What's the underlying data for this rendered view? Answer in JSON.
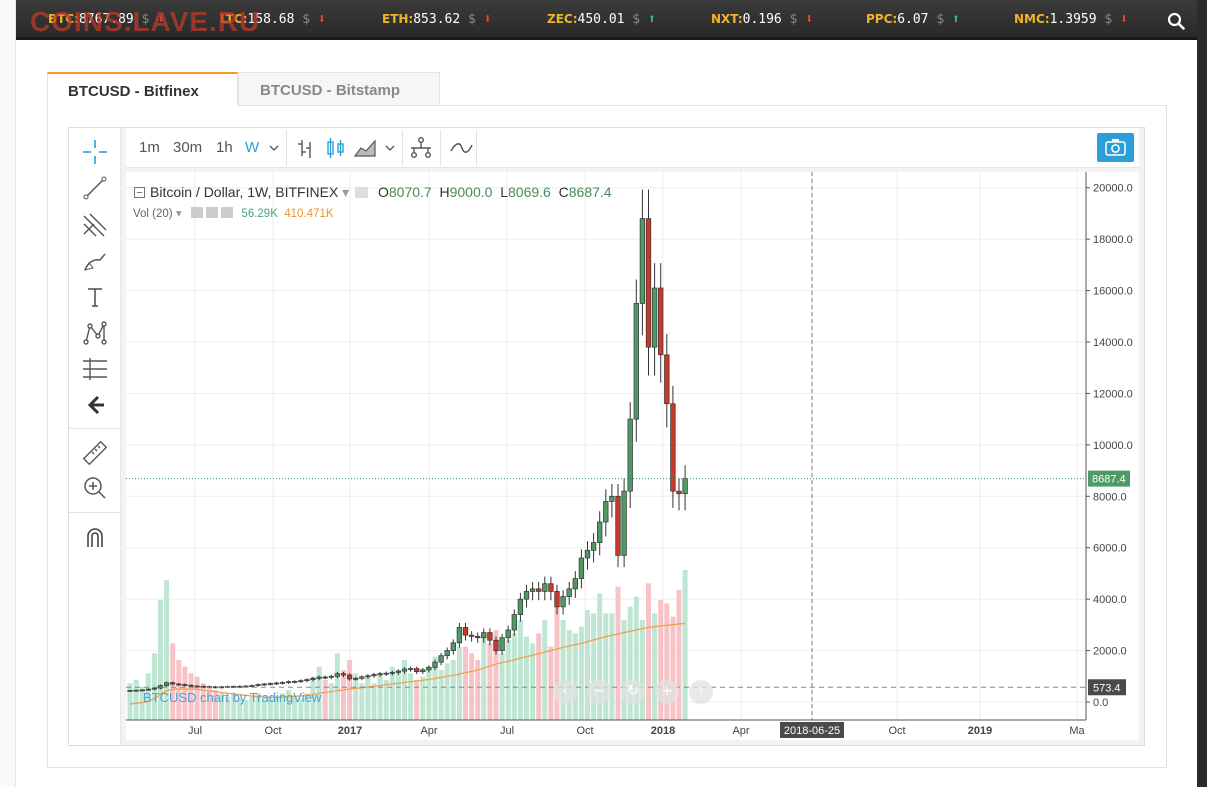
{
  "site": {
    "watermark": "COINS.LAVE.RU"
  },
  "ticker": [
    {
      "symbol": "BTC:",
      "price": "8767.89",
      "currency": "$",
      "dir": "down"
    },
    {
      "symbol": "LTC:",
      "price": "158.68",
      "currency": "$",
      "dir": "down"
    },
    {
      "symbol": "ETH:",
      "price": "853.62",
      "currency": "$",
      "dir": "down"
    },
    {
      "symbol": "ZEC:",
      "price": "450.01",
      "currency": "$",
      "dir": "up"
    },
    {
      "symbol": "NXT:",
      "price": "0.196",
      "currency": "$",
      "dir": "down"
    },
    {
      "symbol": "PPC:",
      "price": "6.07",
      "currency": "$",
      "dir": "up"
    },
    {
      "symbol": "NMC:",
      "price": "1.3959",
      "currency": "$",
      "dir": "down"
    }
  ],
  "tabs": [
    {
      "label": "BTCUSD - Bitfinex",
      "active": true
    },
    {
      "label": "BTCUSD - Bitstamp",
      "active": false
    }
  ],
  "toolbar": {
    "intervals": [
      "1m",
      "30m",
      "1h",
      "W"
    ],
    "active_interval": "W"
  },
  "legend": {
    "symbol": "Bitcoin / Dollar, 1W, BITFINEX",
    "open_label": "O",
    "open": "8070.7",
    "high_label": "H",
    "high": "9000.0",
    "low_label": "L",
    "low": "8069.6",
    "close_label": "C",
    "close": "8687.4",
    "vol_label": "Vol (20)",
    "vol_value": "56.29K",
    "vol_ma": "410.471K"
  },
  "credit": "BTCUSD chart by TradingView",
  "colors": {
    "up": "#3d8b5a",
    "down": "#c8392b",
    "up_fill": "#4e9a66",
    "vol_up": "#bfe6d3",
    "vol_down": "#f7c3c7",
    "ma": "#f0a050",
    "accent": "#2b9fd8"
  },
  "chart_data": {
    "type": "candlestick",
    "title": "Bitcoin / Dollar, 1W, BITFINEX",
    "ylim": [
      0,
      21000
    ],
    "y_ticks": [
      "0.0",
      "2000.0",
      "4000.0",
      "6000.0",
      "8000.0",
      "10000.0",
      "12000.0",
      "14000.0",
      "16000.0",
      "18000.0",
      "20000.0"
    ],
    "x_ticks": [
      "Jul",
      "Oct",
      "2017",
      "Apr",
      "Jul",
      "Oct",
      "2018",
      "Apr",
      "2018-06-25",
      "Oct",
      "2019",
      "Ma"
    ],
    "last_price_label": "8687.4",
    "last_price": 8687.4,
    "ref_line_label": "573.4",
    "ref_line": 573.4,
    "cursor_date": "2018-06-25",
    "close": [
      450,
      460,
      470,
      500,
      540,
      640,
      750,
      700,
      680,
      650,
      620,
      610,
      600,
      590,
      575,
      590,
      600,
      605,
      610,
      620,
      640,
      680,
      700,
      720,
      740,
      760,
      790,
      800,
      830,
      870,
      920,
      970,
      960,
      1000,
      1100,
      1050,
      900,
      920,
      980,
      1020,
      1070,
      1100,
      1120,
      1150,
      1200,
      1280,
      1300,
      1180,
      1250,
      1350,
      1550,
      1800,
      2000,
      2300,
      2900,
      2600,
      2550,
      2500,
      2700,
      2400,
      2000,
      2500,
      2800,
      3400,
      4000,
      4300,
      4400,
      4300,
      4600,
      4300,
      3700,
      4100,
      4400,
      4800,
      5600,
      5900,
      6200,
      7000,
      7800,
      8000,
      5700,
      8200,
      11000,
      15500,
      18800,
      13800,
      16100,
      13500,
      11600,
      8200,
      8100,
      8687.4
    ],
    "volume": [
      1100,
      1200,
      1000,
      1400,
      2000,
      3600,
      4200,
      2300,
      1800,
      1600,
      1400,
      1300,
      1100,
      1000,
      900,
      800,
      700,
      800,
      650,
      600,
      700,
      800,
      600,
      650,
      700,
      800,
      900,
      700,
      650,
      800,
      1300,
      1600,
      1200,
      1100,
      2000,
      1500,
      1800,
      1400,
      1100,
      1300,
      1100,
      1400,
      1200,
      1600,
      1500,
      1800,
      1400,
      1200,
      1300,
      1600,
      1900,
      1500,
      1700,
      1800,
      2200,
      2200,
      2000,
      1800,
      2600,
      2300,
      2700,
      2000,
      2400,
      2600,
      3000,
      2500,
      2300,
      2600,
      3000,
      2200,
      3500,
      3000,
      2700,
      2600,
      2800,
      3300,
      3200,
      3800,
      3200,
      3200,
      4000,
      3000,
      3400,
      3700,
      3000,
      4100,
      3200,
      3600,
      3500,
      3100,
      3900,
      4500
    ],
    "volume_ma": [
      480,
      500,
      520,
      560,
      640,
      780,
      880,
      920,
      930,
      930,
      930,
      920,
      900,
      870,
      850,
      820,
      800,
      780,
      760,
      740,
      720,
      700,
      690,
      680,
      680,
      690,
      700,
      710,
      720,
      740,
      770,
      800,
      830,
      850,
      880,
      900,
      930,
      950,
      970,
      990,
      1010,
      1030,
      1060,
      1080,
      1100,
      1130,
      1150,
      1170,
      1190,
      1220,
      1250,
      1280,
      1310,
      1340,
      1380,
      1420,
      1460,
      1500,
      1560,
      1620,
      1680,
      1720,
      1760,
      1800,
      1860,
      1900,
      1940,
      1990,
      2040,
      2080,
      2130,
      2180,
      2220,
      2260,
      2300,
      2350,
      2400,
      2450,
      2500,
      2540,
      2580,
      2620,
      2660,
      2700,
      2740,
      2780,
      2800,
      2820,
      2840,
      2860,
      2880,
      2900
    ]
  }
}
